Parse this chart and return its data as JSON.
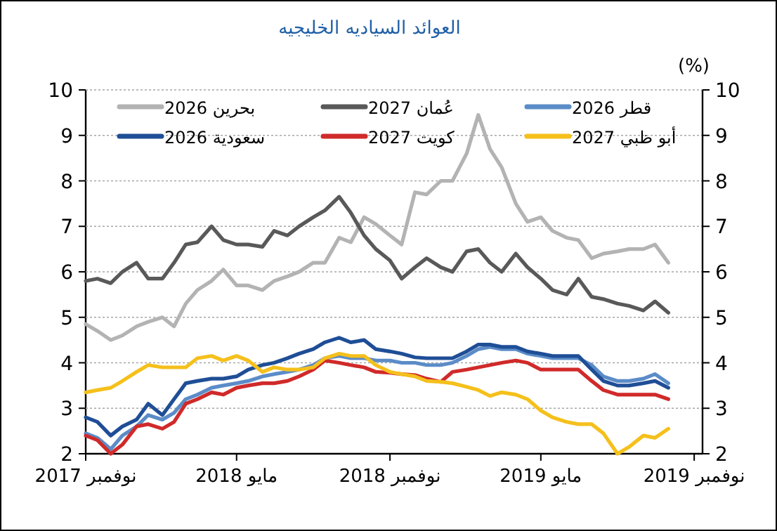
{
  "chart_data": {
    "type": "line",
    "title": "العوائد السياديه الخليجيه",
    "y2label": "(%)",
    "x": [
      "2017-11-01",
      "2017-11-15",
      "2017-12-01",
      "2017-12-15",
      "2018-01-01",
      "2018-01-15",
      "2018-02-01",
      "2018-02-15",
      "2018-03-01",
      "2018-03-15",
      "2018-04-01",
      "2018-04-15",
      "2018-05-01",
      "2018-05-15",
      "2018-06-01",
      "2018-06-15",
      "2018-07-01",
      "2018-07-15",
      "2018-08-01",
      "2018-08-15",
      "2018-09-01",
      "2018-09-15",
      "2018-10-01",
      "2018-10-15",
      "2018-11-01",
      "2018-11-15",
      "2018-12-01",
      "2018-12-15",
      "2019-01-01",
      "2019-01-15",
      "2019-02-01",
      "2019-02-15",
      "2019-03-01",
      "2019-03-15",
      "2019-04-01",
      "2019-04-15",
      "2019-05-01",
      "2019-05-15",
      "2019-06-01",
      "2019-06-15",
      "2019-07-01",
      "2019-07-15",
      "2019-08-01",
      "2019-08-15",
      "2019-09-01",
      "2019-09-15",
      "2019-10-01"
    ],
    "series": [
      {
        "name": "بحرين 2026",
        "color": "#b3b3b3",
        "values": [
          4.85,
          4.7,
          4.5,
          4.6,
          4.8,
          4.9,
          5.0,
          4.8,
          5.3,
          5.6,
          5.8,
          6.05,
          5.7,
          5.7,
          5.6,
          5.8,
          5.9,
          6.0,
          6.2,
          6.2,
          6.75,
          6.65,
          7.2,
          7.05,
          6.8,
          6.6,
          7.75,
          7.7,
          8.0,
          8.0,
          8.6,
          9.45,
          8.7,
          8.3,
          7.5,
          7.1,
          7.2,
          6.9,
          6.75,
          6.7,
          6.3,
          6.4,
          6.45,
          6.5,
          6.5,
          6.6,
          6.2
        ]
      },
      {
        "name": "عُمان 2027",
        "color": "#595959",
        "values": [
          5.8,
          5.85,
          5.75,
          6.0,
          6.2,
          5.85,
          5.85,
          6.2,
          6.6,
          6.65,
          7.0,
          6.7,
          6.6,
          6.6,
          6.55,
          6.9,
          6.8,
          7.0,
          7.2,
          7.35,
          7.65,
          7.3,
          6.8,
          6.5,
          6.25,
          5.85,
          6.1,
          6.3,
          6.1,
          6.0,
          6.45,
          6.5,
          6.2,
          6.0,
          6.4,
          6.1,
          5.85,
          5.6,
          5.5,
          5.85,
          5.45,
          5.4,
          5.3,
          5.25,
          5.15,
          5.35,
          5.1
        ]
      },
      {
        "name": "قطر 2026",
        "color": "#5b8cc8",
        "values": [
          2.45,
          2.35,
          2.1,
          2.4,
          2.6,
          2.85,
          2.75,
          2.9,
          3.2,
          3.3,
          3.45,
          3.5,
          3.55,
          3.6,
          3.7,
          3.75,
          3.8,
          3.85,
          3.95,
          4.1,
          4.15,
          4.1,
          4.1,
          4.05,
          4.05,
          4.0,
          4.0,
          3.95,
          3.95,
          4.0,
          4.15,
          4.3,
          4.35,
          4.3,
          4.3,
          4.2,
          4.15,
          4.1,
          4.1,
          4.1,
          3.95,
          3.7,
          3.6,
          3.6,
          3.65,
          3.75,
          3.55
        ]
      },
      {
        "name": "سعودية 2026",
        "color": "#1f4e96",
        "values": [
          2.8,
          2.7,
          2.4,
          2.6,
          2.75,
          3.1,
          2.85,
          3.2,
          3.55,
          3.6,
          3.65,
          3.65,
          3.7,
          3.85,
          3.95,
          4.0,
          4.1,
          4.2,
          4.3,
          4.45,
          4.55,
          4.45,
          4.5,
          4.3,
          4.25,
          4.2,
          4.12,
          4.1,
          4.1,
          4.1,
          4.25,
          4.4,
          4.4,
          4.35,
          4.35,
          4.25,
          4.2,
          4.15,
          4.15,
          4.15,
          3.85,
          3.6,
          3.5,
          3.5,
          3.55,
          3.6,
          3.45
        ]
      },
      {
        "name": "كويت 2027",
        "color": "#d02a2a",
        "values": [
          2.4,
          2.3,
          2.0,
          2.2,
          2.6,
          2.65,
          2.55,
          2.7,
          3.1,
          3.2,
          3.35,
          3.3,
          3.45,
          3.5,
          3.55,
          3.55,
          3.6,
          3.7,
          3.85,
          4.05,
          4.0,
          3.95,
          3.9,
          3.8,
          3.78,
          3.75,
          3.73,
          3.65,
          3.58,
          3.8,
          3.85,
          3.9,
          3.95,
          4.0,
          4.05,
          4.0,
          3.85,
          3.85,
          3.85,
          3.85,
          3.6,
          3.4,
          3.3,
          3.3,
          3.3,
          3.3,
          3.2
        ]
      },
      {
        "name": "أبو ظبي 2027",
        "color": "#f5c01c",
        "values": [
          3.35,
          3.4,
          3.45,
          3.6,
          3.8,
          3.95,
          3.9,
          3.9,
          3.9,
          4.1,
          4.15,
          4.05,
          4.15,
          4.05,
          3.8,
          3.9,
          3.85,
          3.85,
          3.9,
          4.1,
          4.2,
          4.15,
          4.15,
          3.95,
          3.8,
          3.75,
          3.7,
          3.6,
          3.58,
          3.55,
          3.47,
          3.4,
          3.27,
          3.35,
          3.3,
          3.2,
          2.95,
          2.8,
          2.7,
          2.65,
          2.65,
          2.45,
          2.0,
          2.15,
          2.4,
          2.35,
          2.55
        ]
      }
    ],
    "xlim": [
      "2017-11-01",
      "2019-11-11"
    ],
    "xticks": [
      {
        "value": "2017-11-01",
        "label": "نوفمبر 2017"
      },
      {
        "value": "2018-05-01",
        "label": "مايو 2018"
      },
      {
        "value": "2018-11-01",
        "label": "نوفمبر 2018"
      },
      {
        "value": "2019-05-01",
        "label": "مايو 2019"
      },
      {
        "value": "2019-11-01",
        "label": "نوفمبر 2019"
      }
    ],
    "ylim": [
      2,
      10
    ],
    "yticks": [
      2,
      3,
      4,
      5,
      6,
      7,
      8,
      9,
      10
    ],
    "y2lim": [
      2,
      10
    ],
    "y2ticks": [
      2,
      3,
      4,
      5,
      6,
      7,
      8,
      9,
      10
    ],
    "grid": "y",
    "legend": "top"
  }
}
